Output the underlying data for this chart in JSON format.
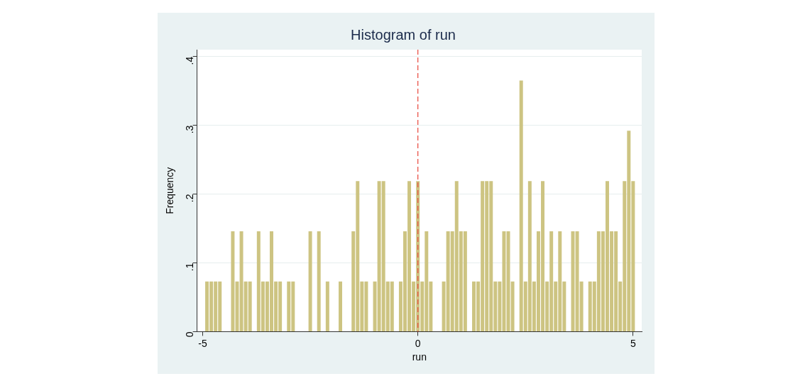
{
  "chart_data": {
    "type": "histogram",
    "title": "Histogram of run",
    "xlabel": "run",
    "ylabel": "Frequency",
    "bins": [
      -4.95,
      -4.85,
      -4.75,
      -4.65,
      -4.55,
      -4.45,
      -4.35,
      -4.25,
      -4.15,
      -4.05,
      -3.95,
      -3.85,
      -3.75,
      -3.65,
      -3.55,
      -3.45,
      -3.35,
      -3.25,
      -3.15,
      -3.05,
      -2.95,
      -2.85,
      -2.75,
      -2.65,
      -2.55,
      -2.45,
      -2.35,
      -2.25,
      -2.15,
      -2.05,
      -1.95,
      -1.85,
      -1.75,
      -1.65,
      -1.55,
      -1.45,
      -1.35,
      -1.25,
      -1.15,
      -1.05,
      -0.95,
      -0.85,
      -0.75,
      -0.65,
      -0.55,
      -0.45,
      -0.35,
      -0.25,
      -0.15,
      -0.05,
      0.05,
      0.15,
      0.25,
      0.35,
      0.45,
      0.55,
      0.65,
      0.75,
      0.85,
      0.95,
      1.05,
      1.15,
      1.25,
      1.35,
      1.45,
      1.55,
      1.65,
      1.75,
      1.85,
      1.95,
      2.05,
      2.15,
      2.25,
      2.35,
      2.45,
      2.55,
      2.65,
      2.75,
      2.85,
      2.95,
      3.05,
      3.15,
      3.25,
      3.35,
      3.45,
      3.55,
      3.65,
      3.75,
      3.85,
      3.95,
      4.05,
      4.15,
      4.25,
      4.35,
      4.45,
      4.55,
      4.65,
      4.75,
      4.85,
      4.95,
      5.05
    ],
    "values": [
      0.073,
      0.073,
      0.073,
      0.073,
      0,
      0,
      0.146,
      0.073,
      0.146,
      0.073,
      0.073,
      0,
      0.146,
      0.073,
      0.073,
      0.146,
      0.073,
      0.073,
      0,
      0.073,
      0.073,
      0,
      0,
      0,
      0.146,
      0,
      0.146,
      0,
      0.073,
      0,
      0,
      0.073,
      0,
      0,
      0.146,
      0.219,
      0.073,
      0.073,
      0,
      0.073,
      0.219,
      0.219,
      0.073,
      0.073,
      0,
      0.073,
      0.146,
      0.219,
      0.073,
      0.219,
      0.073,
      0.146,
      0.073,
      0,
      0,
      0.073,
      0.146,
      0.146,
      0.219,
      0.146,
      0.146,
      0,
      0.073,
      0.073,
      0.219,
      0.219,
      0.219,
      0.073,
      0.073,
      0.146,
      0.146,
      0.073,
      0,
      0.365,
      0.073,
      0.219,
      0.073,
      0.146,
      0.219,
      0.073,
      0.146,
      0.073,
      0.146,
      0.073,
      0,
      0.146,
      0.146,
      0.073,
      0,
      0.073,
      0.073,
      0.146,
      0.146,
      0.219,
      0.146,
      0.146,
      0.073,
      0.219,
      0.292,
      0.219
    ],
    "color": "#cdc482",
    "xlim": [
      -5.13,
      5.2
    ],
    "xticks": [
      -5,
      0,
      5
    ],
    "ylim": [
      0,
      0.41
    ],
    "yticks": [
      {
        "value": 0,
        "label": "0"
      },
      {
        "value": 0.1,
        "label": ".1"
      },
      {
        "value": 0.2,
        "label": ".2"
      },
      {
        "value": 0.3,
        "label": ".3"
      },
      {
        "value": 0.4,
        "label": ".4"
      }
    ],
    "grid": "y",
    "ref_lines": [
      {
        "axis": "x",
        "value": 0,
        "color": "#e8463c",
        "line_style": "dashed"
      }
    ],
    "legend": false
  }
}
